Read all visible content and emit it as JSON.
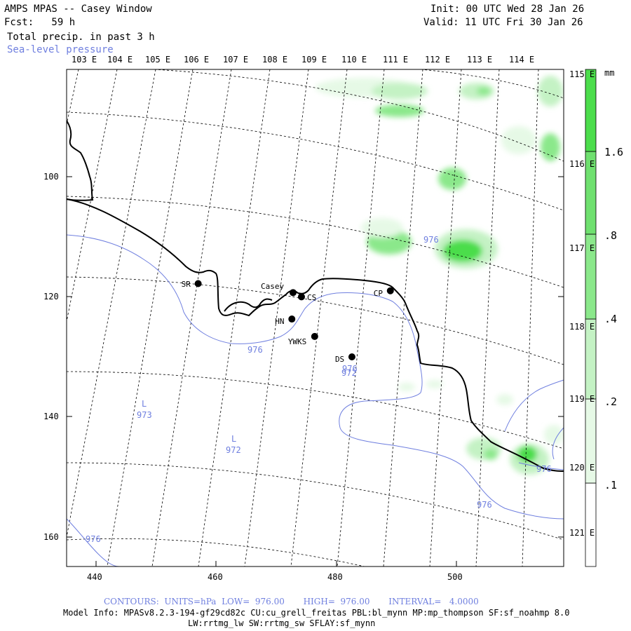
{
  "header": {
    "title": "AMPS MPAS -- Casey Window",
    "fcst": "Fcst:   59 h",
    "field": "Total precip. in past 3 h",
    "overlay": "Sea-level pressure",
    "init": "Init: 00 UTC Wed 28 Jan 26",
    "valid": "Valid: 11 UTC Fri 30 Jan 26"
  },
  "longitude_labels": [
    "103 E",
    "104 E",
    "105 E",
    "106 E",
    "107 E",
    "108 E",
    "109 E",
    "110 E",
    "111 E",
    "112 E",
    "113 E",
    "114 E"
  ],
  "latitude_labels": [
    "115 E",
    "116 E",
    "117 E",
    "118 E",
    "119 E",
    "120 E",
    "121 E"
  ],
  "y_axis_ticks": [
    "100",
    "120",
    "140",
    "160"
  ],
  "x_axis_ticks": [
    "440",
    "460",
    "480",
    "500"
  ],
  "stations": [
    {
      "name": "SR",
      "x": 457.0,
      "y": 117.8
    },
    {
      "name": "Casey",
      "x": 472.8,
      "y": 119.3
    },
    {
      "name": "CS",
      "x": 474.2,
      "y": 120.0
    },
    {
      "name": "CP",
      "x": 489.0,
      "y": 119.0
    },
    {
      "name": "HN",
      "x": 472.6,
      "y": 123.7
    },
    {
      "name": "YWKS",
      "x": 476.4,
      "y": 126.6
    },
    {
      "name": "DS",
      "x": 482.6,
      "y": 130.0
    }
  ],
  "contour_labels": [
    "976",
    "976",
    "976",
    "976",
    "976",
    "976",
    "972",
    "973",
    "972"
  ],
  "pressure_lows": [
    "L",
    "L"
  ],
  "colorbar": {
    "unit": "mm",
    "labels": [
      ".1",
      ".2",
      ".4",
      ".8",
      "1.6"
    ],
    "colors": [
      "#ffffff",
      "#e6f9e6",
      "#c4f2c4",
      "#8be88b",
      "#4cdd4c"
    ]
  },
  "footer": {
    "contours": "CONTOURS:  UNITS=hPa  LOW=  976.00       HIGH=  976.00       INTERVAL=   4.0000",
    "model_info": "Model Info: MPASv8.2.3-194-gf29cd82c CU:cu_grell_freitas PBL:bl_mynn MP:mp_thompson SF:sf_noahmp 8.0",
    "model_info2": "LW:rrtmg_lw SW:rrtmg_sw SFLAY:sf_mynn"
  },
  "colors": {
    "contour": "#6f7fdf",
    "precip_light": "#c4f2c4",
    "precip_dark": "#4cdd4c"
  }
}
